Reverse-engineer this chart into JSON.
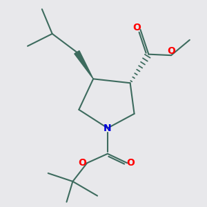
{
  "bg_color": "#e8e8eb",
  "bond_color": "#3d6b5e",
  "bond_width": 1.5,
  "O_color": "#ff0000",
  "N_color": "#0000dd",
  "figsize": [
    3.0,
    3.0
  ],
  "dpi": 100,
  "xlim": [
    0,
    10
  ],
  "ylim": [
    0,
    10
  ]
}
